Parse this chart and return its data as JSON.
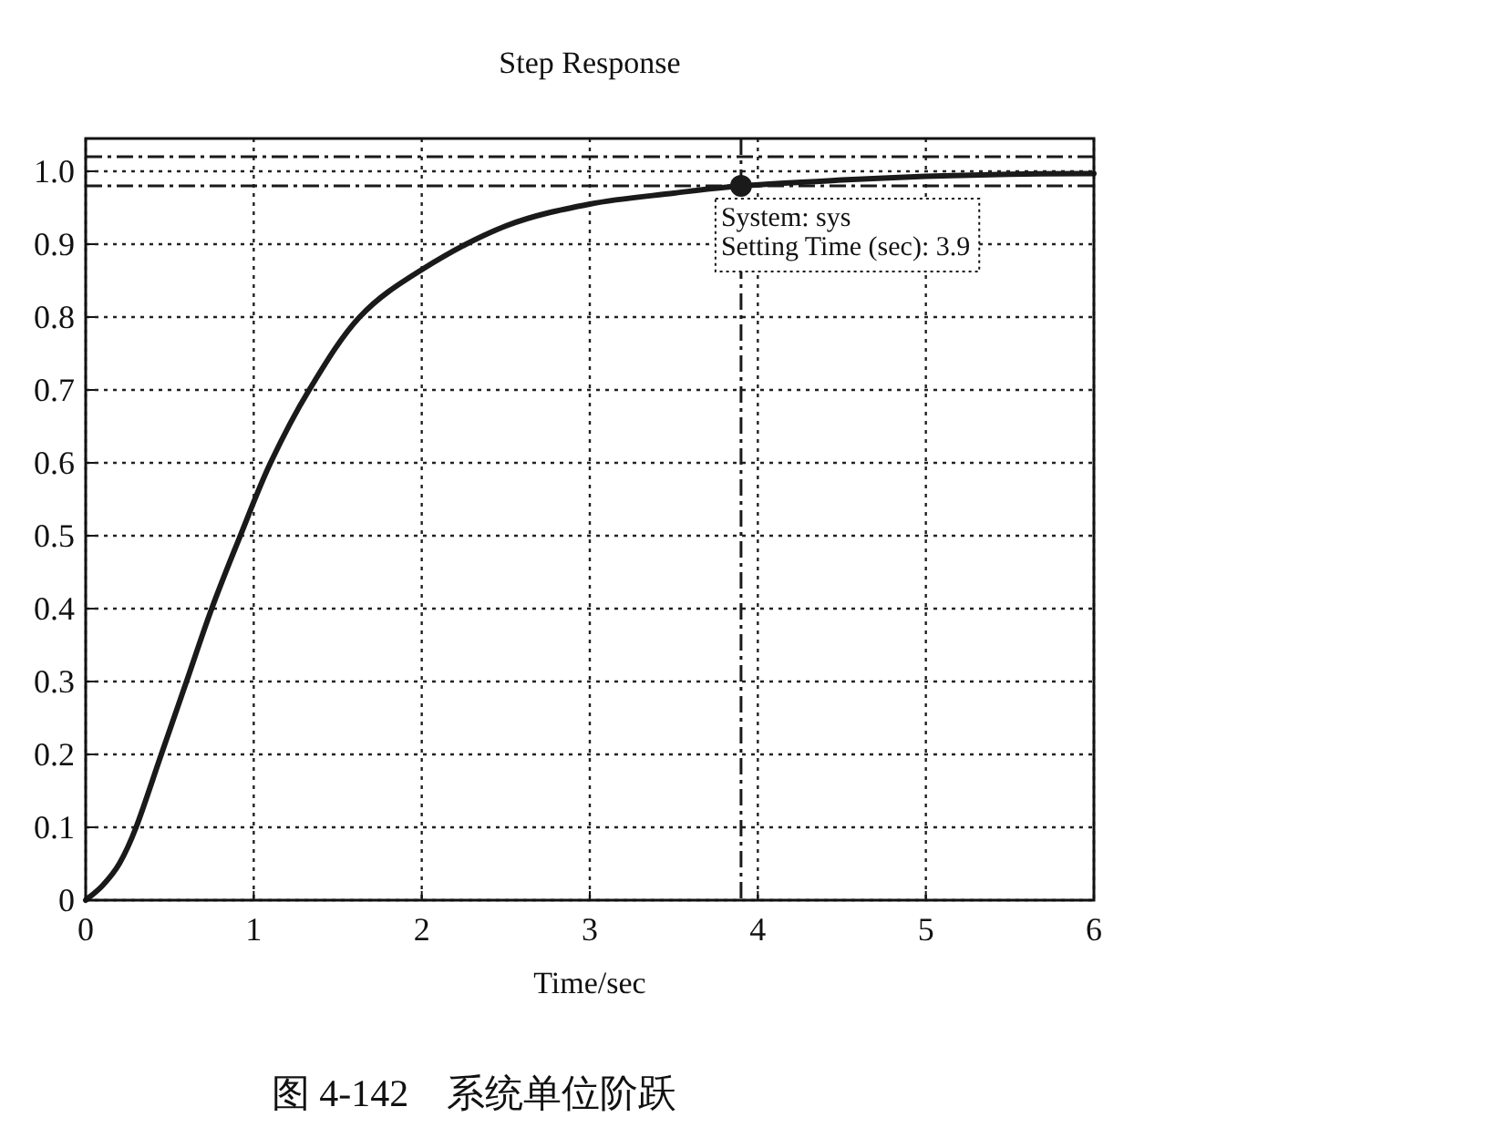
{
  "chart_data": {
    "type": "line",
    "title": "Step Response",
    "xlabel": "Time/sec",
    "xlim": [
      0,
      6
    ],
    "xticks": [
      0,
      1,
      2,
      3,
      4,
      5,
      6
    ],
    "ylim": [
      0,
      1.045
    ],
    "yticks": [
      0,
      0.1,
      0.2,
      0.3,
      0.4,
      0.5,
      0.6,
      0.7,
      0.8,
      0.9,
      {
        "value": 1,
        "label": "1.0"
      }
    ],
    "grid": true,
    "series": [
      {
        "color": "#1a1a1a",
        "marker": "none",
        "line_style": "solid",
        "x": [
          0,
          0.1,
          0.2,
          0.3,
          0.45,
          0.6,
          0.75,
          0.92,
          1.1,
          1.33,
          1.63,
          2.0,
          2.5,
          3.0,
          3.5,
          3.9,
          4.5,
          5.0,
          5.5,
          6.0
        ],
        "values": [
          0,
          0.02,
          0.05,
          0.1,
          0.2,
          0.3,
          0.4,
          0.5,
          0.6,
          0.7,
          0.8,
          0.865,
          0.925,
          0.955,
          0.97,
          0.98,
          0.988,
          0.993,
          0.996,
          0.997
        ]
      },
      {
        "type": "scatter",
        "color": "#1a1a1a",
        "marker": "circle",
        "x": [
          3.9
        ],
        "values": [
          0.98
        ]
      }
    ],
    "ref_lines": [
      {
        "axis": "y",
        "value": 1.02,
        "line_style": "dashed",
        "color": "#1a1a1a"
      },
      {
        "axis": "y",
        "value": 0.98,
        "line_style": "dashed",
        "color": "#1a1a1a"
      },
      {
        "axis": "x",
        "value": 3.9,
        "line_style": "dashed",
        "color": "#1a1a1a"
      }
    ],
    "annotations": [
      {
        "text": "System: sys\nSetting Time (sec): 3.9",
        "x": 3.9,
        "y": 0.98
      },
      "图 4-142　系统单位阶跃"
    ]
  }
}
